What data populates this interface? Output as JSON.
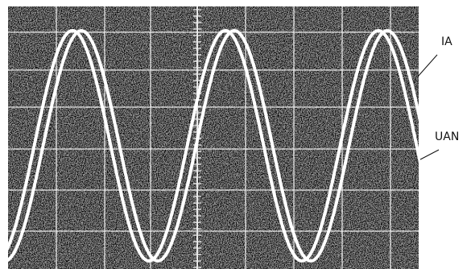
{
  "labels": {
    "ia": "IA",
    "uan": "UAN"
  }
}
